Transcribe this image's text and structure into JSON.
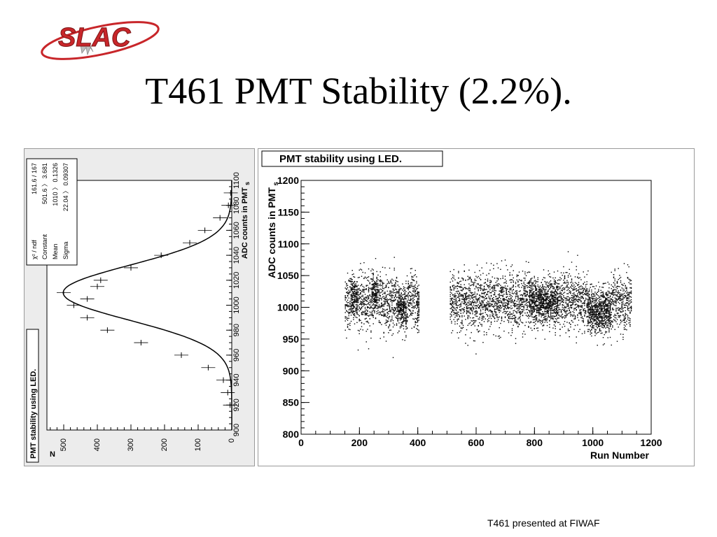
{
  "logo": {
    "text": "SLAC"
  },
  "title": "T461 PMT Stability (2.2%).",
  "footer": "T461 presented at FIWAF",
  "colors": {
    "logo_red": "#c8262a",
    "marker": "#000000",
    "frame_gray": "#ececec"
  },
  "chart_data": [
    {
      "type": "histogram",
      "orientation": "rotated-90",
      "title": "PMT stability using LED.",
      "xlabel": "ADC counts in PMT",
      "xlabel_suffix": "s",
      "ylabel": "N",
      "xlim": [
        900,
        1100
      ],
      "ylim": [
        0,
        550
      ],
      "x_ticks": [
        "900",
        "920",
        "940",
        "960",
        "980",
        "1000",
        "1020",
        "1040",
        "1060",
        "1080",
        "1100"
      ],
      "y_ticks": [
        "0",
        "100",
        "200",
        "300",
        "400",
        "500"
      ],
      "fit": {
        "function": "gaussian",
        "constant": 501.6,
        "mean": 1010,
        "sigma": 22.04
      },
      "stats": [
        {
          "label": "χ² / ndf",
          "value": "161.6 / 167"
        },
        {
          "label": "Constant",
          "value": "501.6 〉 3.681"
        },
        {
          "label": "Mean",
          "value": "1010 〉 0.1326"
        },
        {
          "label": "Sigma",
          "value": "22.04 〉 0.09307"
        }
      ],
      "bins_x": [
        920,
        930,
        940,
        950,
        960,
        970,
        980,
        990,
        1000,
        1005,
        1010,
        1015,
        1020,
        1030,
        1040,
        1050,
        1060,
        1070,
        1080,
        1090
      ],
      "bins_y": [
        5,
        12,
        25,
        70,
        150,
        270,
        370,
        430,
        470,
        430,
        500,
        400,
        390,
        300,
        210,
        125,
        80,
        35,
        10,
        3
      ]
    },
    {
      "type": "scatter",
      "title": "PMT stability using LED.",
      "xlabel": "Run Number",
      "ylabel": "ADC counts in PMT",
      "ylabel_suffix": "s",
      "xlim": [
        0,
        1200
      ],
      "ylim": [
        800,
        1200
      ],
      "x_ticks": [
        "0",
        "200",
        "400",
        "600",
        "800",
        "1000",
        "1200"
      ],
      "y_ticks": [
        "800",
        "850",
        "900",
        "950",
        "1000",
        "1050",
        "1100",
        "1150",
        "1200"
      ],
      "run_ranges": [
        [
          150,
          405
        ],
        [
          510,
          1130
        ]
      ],
      "points_per_run": 20,
      "center": 1010,
      "spread_sigma": 22,
      "dense_regions": [
        [
          170,
          190,
          1015
        ],
        [
          240,
          260,
          1020
        ],
        [
          330,
          360,
          1000
        ],
        [
          395,
          405,
          1000
        ],
        [
          780,
          880,
          1010
        ],
        [
          980,
          1060,
          995
        ]
      ]
    }
  ]
}
